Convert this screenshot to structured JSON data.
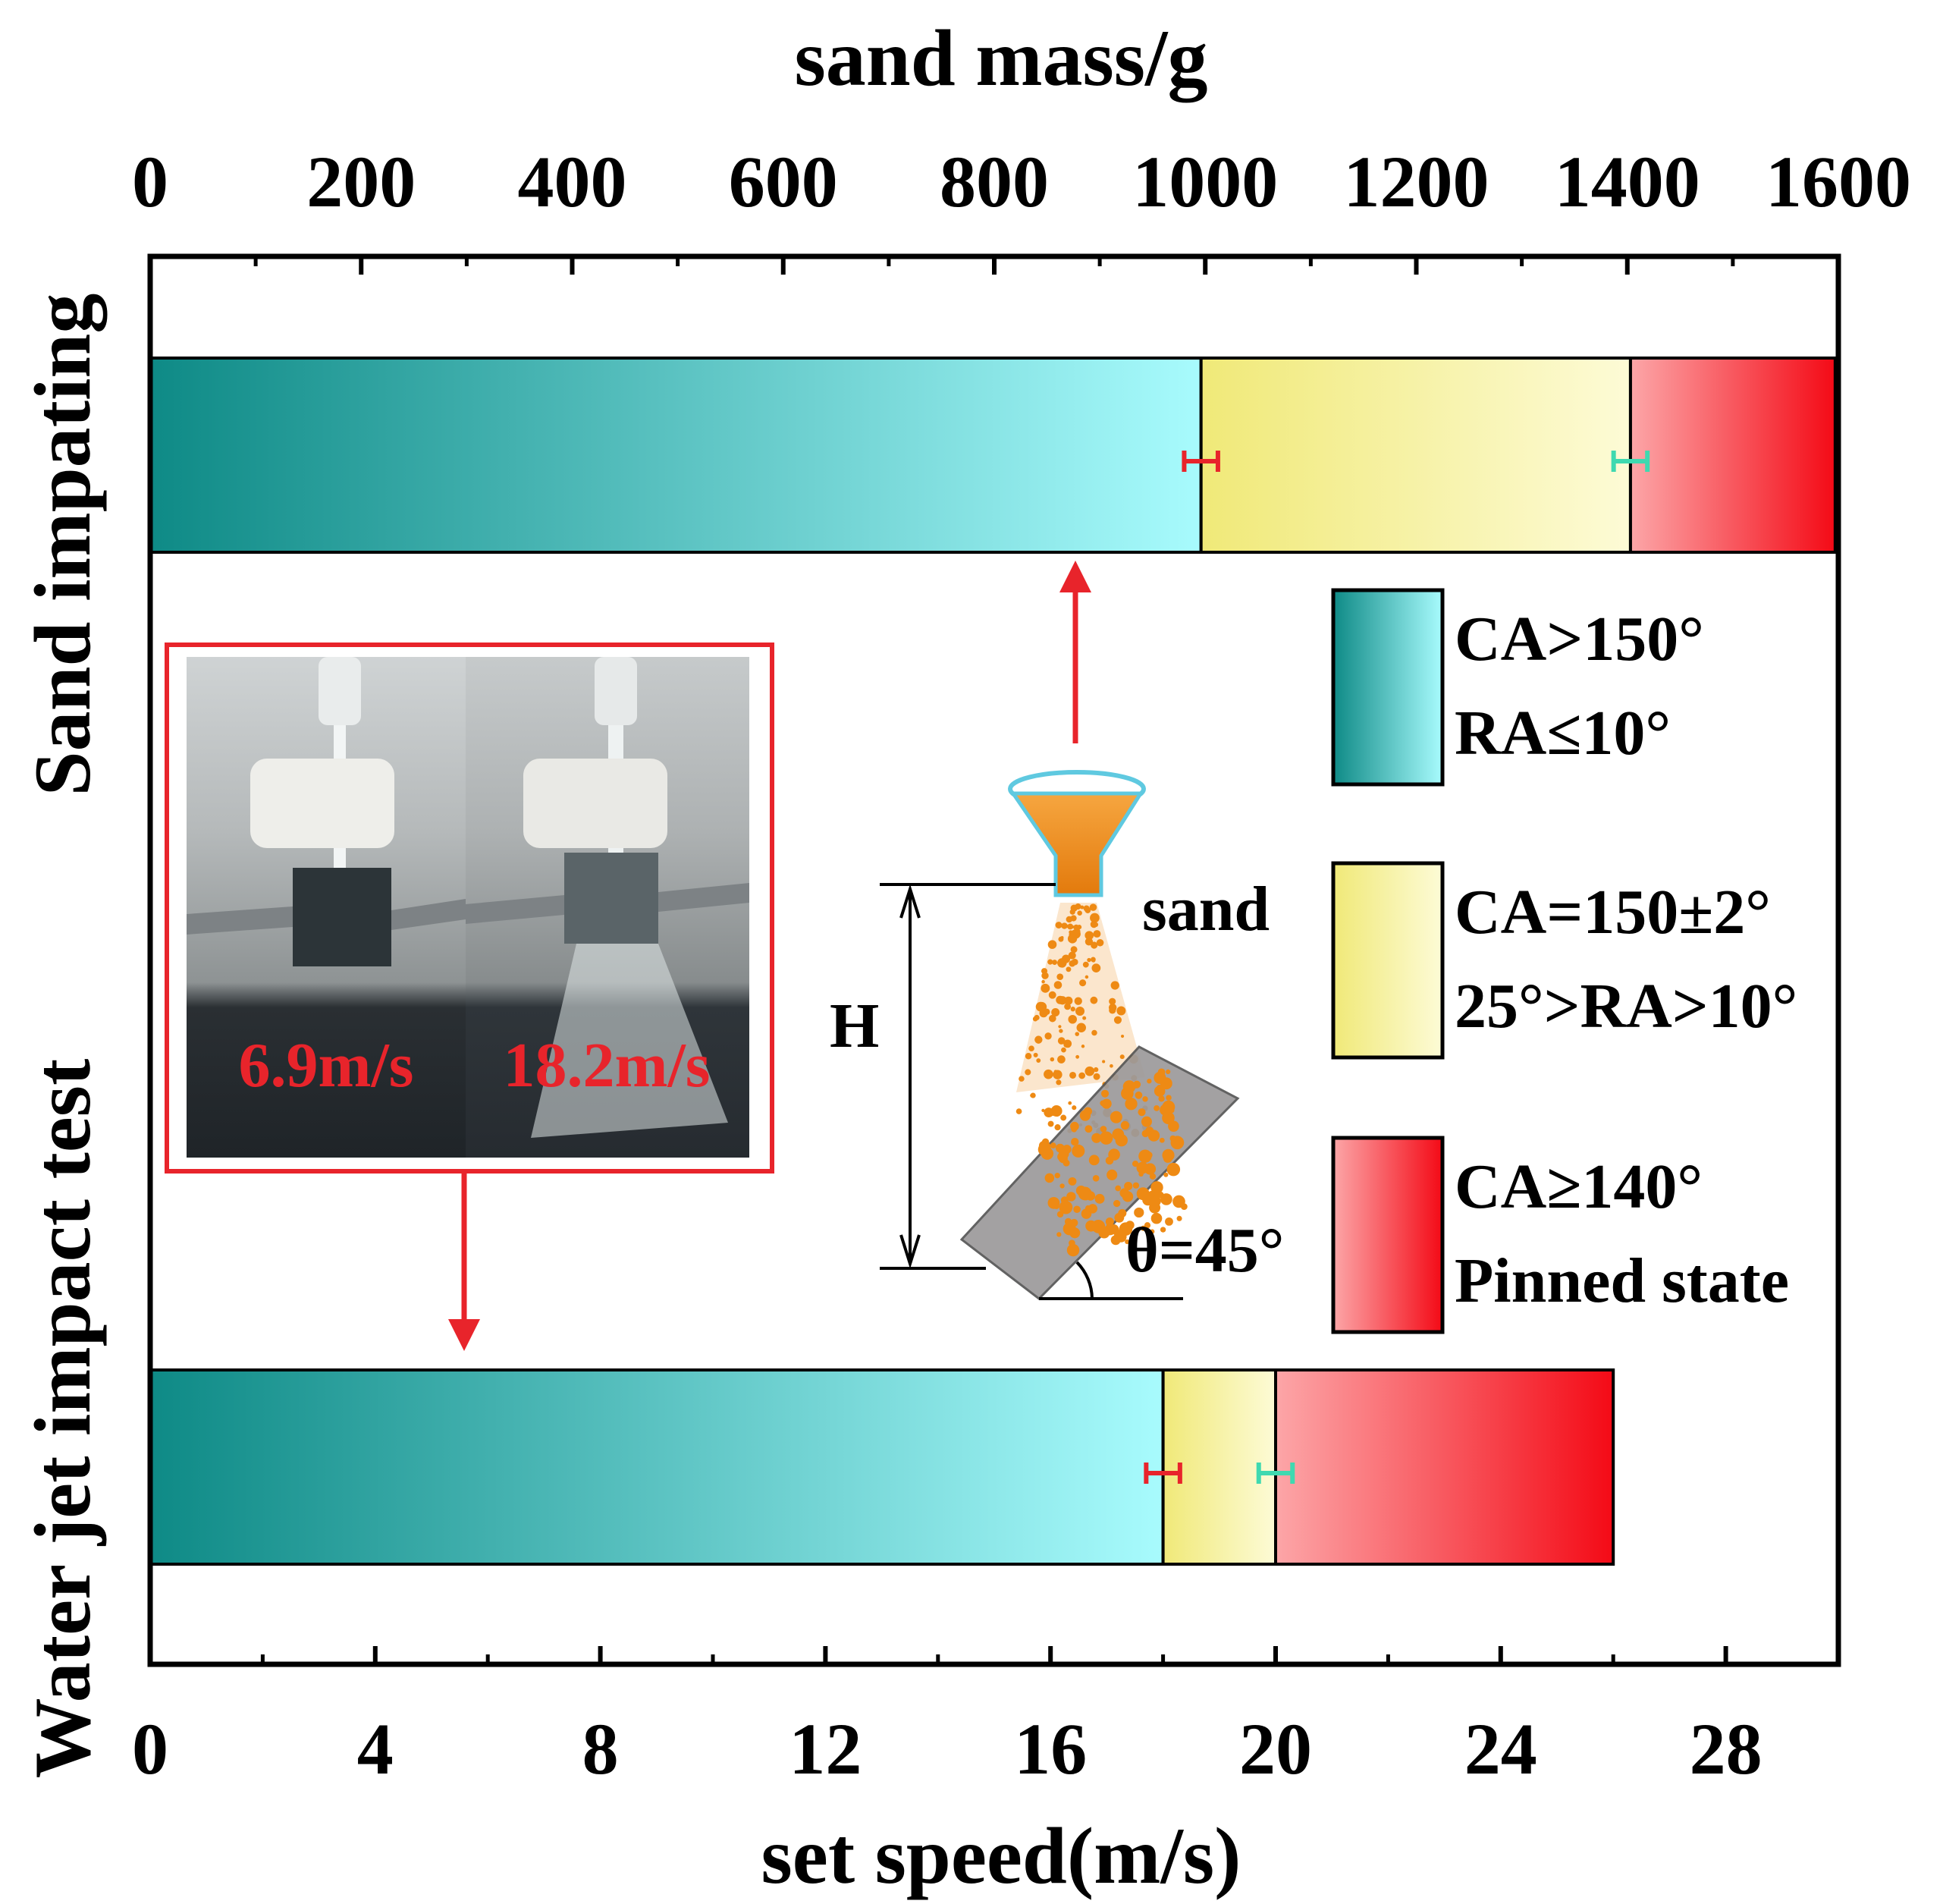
{
  "chart_data": {
    "type": "bar",
    "orientation": "horizontal",
    "stacked": true,
    "top_axis": {
      "label": "sand mass/g",
      "range": [
        0,
        1600
      ],
      "ticks": [
        "0",
        "200",
        "400",
        "600",
        "800",
        "1000",
        "1200",
        "1400",
        "1600"
      ],
      "tick_values": [
        0,
        200,
        400,
        600,
        800,
        1000,
        1200,
        1400,
        1600
      ]
    },
    "bottom_axis": {
      "label": "set speed(m/s)",
      "range": [
        0,
        30
      ],
      "ticks": [
        "0",
        "4",
        "8",
        "12",
        "16",
        "20",
        "24",
        "28"
      ],
      "tick_values": [
        0,
        4,
        8,
        12,
        16,
        20,
        24,
        28
      ]
    },
    "left_axis_labels": [
      "Sand impating",
      "Water jet impact test"
    ],
    "bars": [
      {
        "category": "Sand impating",
        "axis": "top",
        "segments": [
          {
            "state": "superhydrophobic",
            "from": 0,
            "to": 996
          },
          {
            "state": "transition",
            "from": 996,
            "to": 1403
          },
          {
            "state": "pinned",
            "from": 1403,
            "to": 1597
          }
        ],
        "error_bars": [
          {
            "center": 996,
            "half_width": 16,
            "color": "#e8242b"
          },
          {
            "center": 1403,
            "half_width": 16,
            "color": "#3fd9b0"
          }
        ]
      },
      {
        "category": "Water jet impact test",
        "axis": "bottom",
        "segments": [
          {
            "state": "superhydrophobic",
            "from": 0,
            "to": 18.0
          },
          {
            "state": "transition",
            "from": 18.0,
            "to": 20.0
          },
          {
            "state": "pinned",
            "from": 20.0,
            "to": 26.0
          }
        ],
        "error_bars": [
          {
            "center": 18.0,
            "half_width": 0.3,
            "color": "#e8242b"
          },
          {
            "center": 20.0,
            "half_width": 0.3,
            "color": "#3fd9b0"
          }
        ]
      }
    ],
    "legend": {
      "placement": "right-middle",
      "items": [
        {
          "state": "superhydrophobic",
          "lines": [
            "CA>150°",
            "RA≤10°"
          ]
        },
        {
          "state": "transition",
          "lines": [
            "CA=150±2°",
            "25°>RA>10°"
          ]
        },
        {
          "state": "pinned",
          "lines": [
            "CA≥140°",
            "Pinned state"
          ]
        }
      ]
    },
    "colors": {
      "superhydrophobic": [
        "#0e8a86",
        "#a8fbfd"
      ],
      "transition": [
        "#f0e978",
        "#fdfbd6"
      ],
      "pinned": [
        "#fca6a8",
        "#f40a16"
      ],
      "arrow": "#e8242b",
      "photo_frame": "#e8242b",
      "sand": "#ee8a14"
    },
    "annotations": {
      "photo_labels": [
        "6.9m/s",
        "18.2m/s"
      ],
      "schematic_labels": {
        "sand": "sand",
        "height": "H",
        "angle": "θ=45°"
      }
    }
  }
}
